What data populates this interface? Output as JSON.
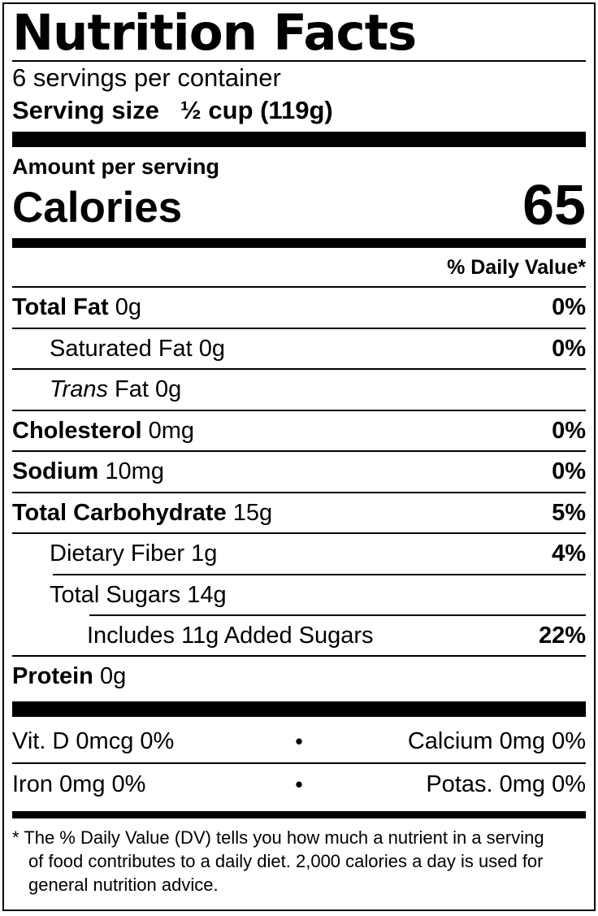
{
  "label": {
    "title": "Nutrition Facts",
    "servings_per_container": "6 servings per container",
    "serving_size_label": "Serving size",
    "serving_size_value": "½ cup (119g)",
    "amount_per_serving": "Amount per serving",
    "calories_label": "Calories",
    "calories_value": "65",
    "daily_value_header": "% Daily Value*",
    "nutrients": {
      "total_fat": {
        "name": "Total Fat",
        "amount": "0g",
        "dv": "0%"
      },
      "saturated_fat": {
        "name": "Saturated Fat",
        "amount": "0g",
        "dv": "0%"
      },
      "trans_fat": {
        "name_italic": "Trans",
        "name_rest": "Fat",
        "amount": "0g",
        "dv": ""
      },
      "cholesterol": {
        "name": "Cholesterol",
        "amount": "0mg",
        "dv": "0%"
      },
      "sodium": {
        "name": "Sodium",
        "amount": "10mg",
        "dv": "0%"
      },
      "total_carbohydrate": {
        "name": "Total Carbohydrate",
        "amount": "15g",
        "dv": "5%"
      },
      "dietary_fiber": {
        "name": "Dietary Fiber",
        "amount": "1g",
        "dv": "4%"
      },
      "total_sugars": {
        "name": "Total Sugars",
        "amount": "14g",
        "dv": ""
      },
      "added_sugars": {
        "name": "Includes 11g Added Sugars",
        "dv": "22%"
      },
      "protein": {
        "name": "Protein",
        "amount": "0g",
        "dv": ""
      }
    },
    "micros": {
      "bullet": "•",
      "rows": [
        {
          "left": "Vit. D 0mcg 0%",
          "right": "Calcium 0mg 0%"
        },
        {
          "left": "Iron 0mg 0%",
          "right": "Potas. 0mg 0%"
        }
      ]
    },
    "footnote": "* The % Daily Value (DV) tells you how much a nutrient in a serving of food contributes to a daily diet. 2,000 calories a day is used for general nutrition advice.",
    "colors": {
      "ink": "#000000",
      "background": "#ffffff"
    }
  }
}
